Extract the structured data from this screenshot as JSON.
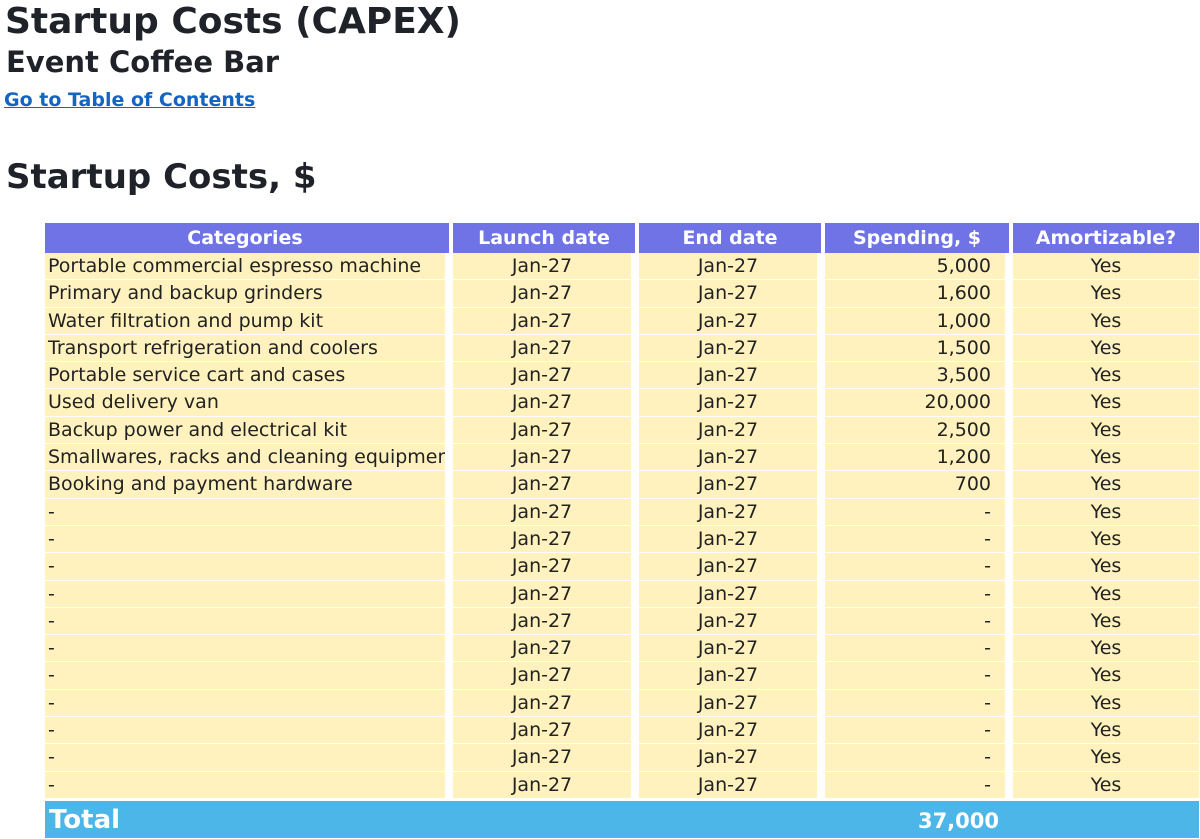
{
  "header": {
    "title": "Startup Costs (CAPEX)",
    "subtitle": "Event Coffee Bar",
    "toc_link": "Go to Table of Contents"
  },
  "section_title": "Startup Costs, $",
  "table": {
    "columns": [
      "Categories",
      "Launch date",
      "End date",
      "Spending, $",
      "Amortizable?"
    ],
    "rows": [
      {
        "category": "Portable commercial espresso machine",
        "launch": "Jan-27",
        "end": "Jan-27",
        "spending": "5,000",
        "amortizable": "Yes"
      },
      {
        "category": "Primary and backup grinders",
        "launch": "Jan-27",
        "end": "Jan-27",
        "spending": "1,600",
        "amortizable": "Yes"
      },
      {
        "category": "Water filtration and pump kit",
        "launch": "Jan-27",
        "end": "Jan-27",
        "spending": "1,000",
        "amortizable": "Yes"
      },
      {
        "category": "Transport refrigeration and coolers",
        "launch": "Jan-27",
        "end": "Jan-27",
        "spending": "1,500",
        "amortizable": "Yes"
      },
      {
        "category": "Portable service cart and cases",
        "launch": "Jan-27",
        "end": "Jan-27",
        "spending": "3,500",
        "amortizable": "Yes"
      },
      {
        "category": "Used delivery van",
        "launch": "Jan-27",
        "end": "Jan-27",
        "spending": "20,000",
        "amortizable": "Yes"
      },
      {
        "category": "Backup power and electrical kit",
        "launch": "Jan-27",
        "end": "Jan-27",
        "spending": "2,500",
        "amortizable": "Yes"
      },
      {
        "category": "Smallwares, racks and cleaning equipment",
        "launch": "Jan-27",
        "end": "Jan-27",
        "spending": "1,200",
        "amortizable": "Yes"
      },
      {
        "category": "Booking and payment hardware",
        "launch": "Jan-27",
        "end": "Jan-27",
        "spending": "700",
        "amortizable": "Yes"
      },
      {
        "category": "-",
        "launch": "Jan-27",
        "end": "Jan-27",
        "spending": "-",
        "amortizable": "Yes"
      },
      {
        "category": "-",
        "launch": "Jan-27",
        "end": "Jan-27",
        "spending": "-",
        "amortizable": "Yes"
      },
      {
        "category": "-",
        "launch": "Jan-27",
        "end": "Jan-27",
        "spending": "-",
        "amortizable": "Yes"
      },
      {
        "category": "-",
        "launch": "Jan-27",
        "end": "Jan-27",
        "spending": "-",
        "amortizable": "Yes"
      },
      {
        "category": "-",
        "launch": "Jan-27",
        "end": "Jan-27",
        "spending": "-",
        "amortizable": "Yes"
      },
      {
        "category": "-",
        "launch": "Jan-27",
        "end": "Jan-27",
        "spending": "-",
        "amortizable": "Yes"
      },
      {
        "category": "-",
        "launch": "Jan-27",
        "end": "Jan-27",
        "spending": "-",
        "amortizable": "Yes"
      },
      {
        "category": "-",
        "launch": "Jan-27",
        "end": "Jan-27",
        "spending": "-",
        "amortizable": "Yes"
      },
      {
        "category": "-",
        "launch": "Jan-27",
        "end": "Jan-27",
        "spending": "-",
        "amortizable": "Yes"
      },
      {
        "category": "-",
        "launch": "Jan-27",
        "end": "Jan-27",
        "spending": "-",
        "amortizable": "Yes"
      },
      {
        "category": "-",
        "launch": "Jan-27",
        "end": "Jan-27",
        "spending": "-",
        "amortizable": "Yes"
      }
    ],
    "total_label": "Total",
    "total_value": "37,000"
  },
  "colors": {
    "header_bg": "#6f73e6",
    "row_bg": "#fff2be",
    "total_bg": "#4db6e8",
    "link": "#1565c0"
  }
}
